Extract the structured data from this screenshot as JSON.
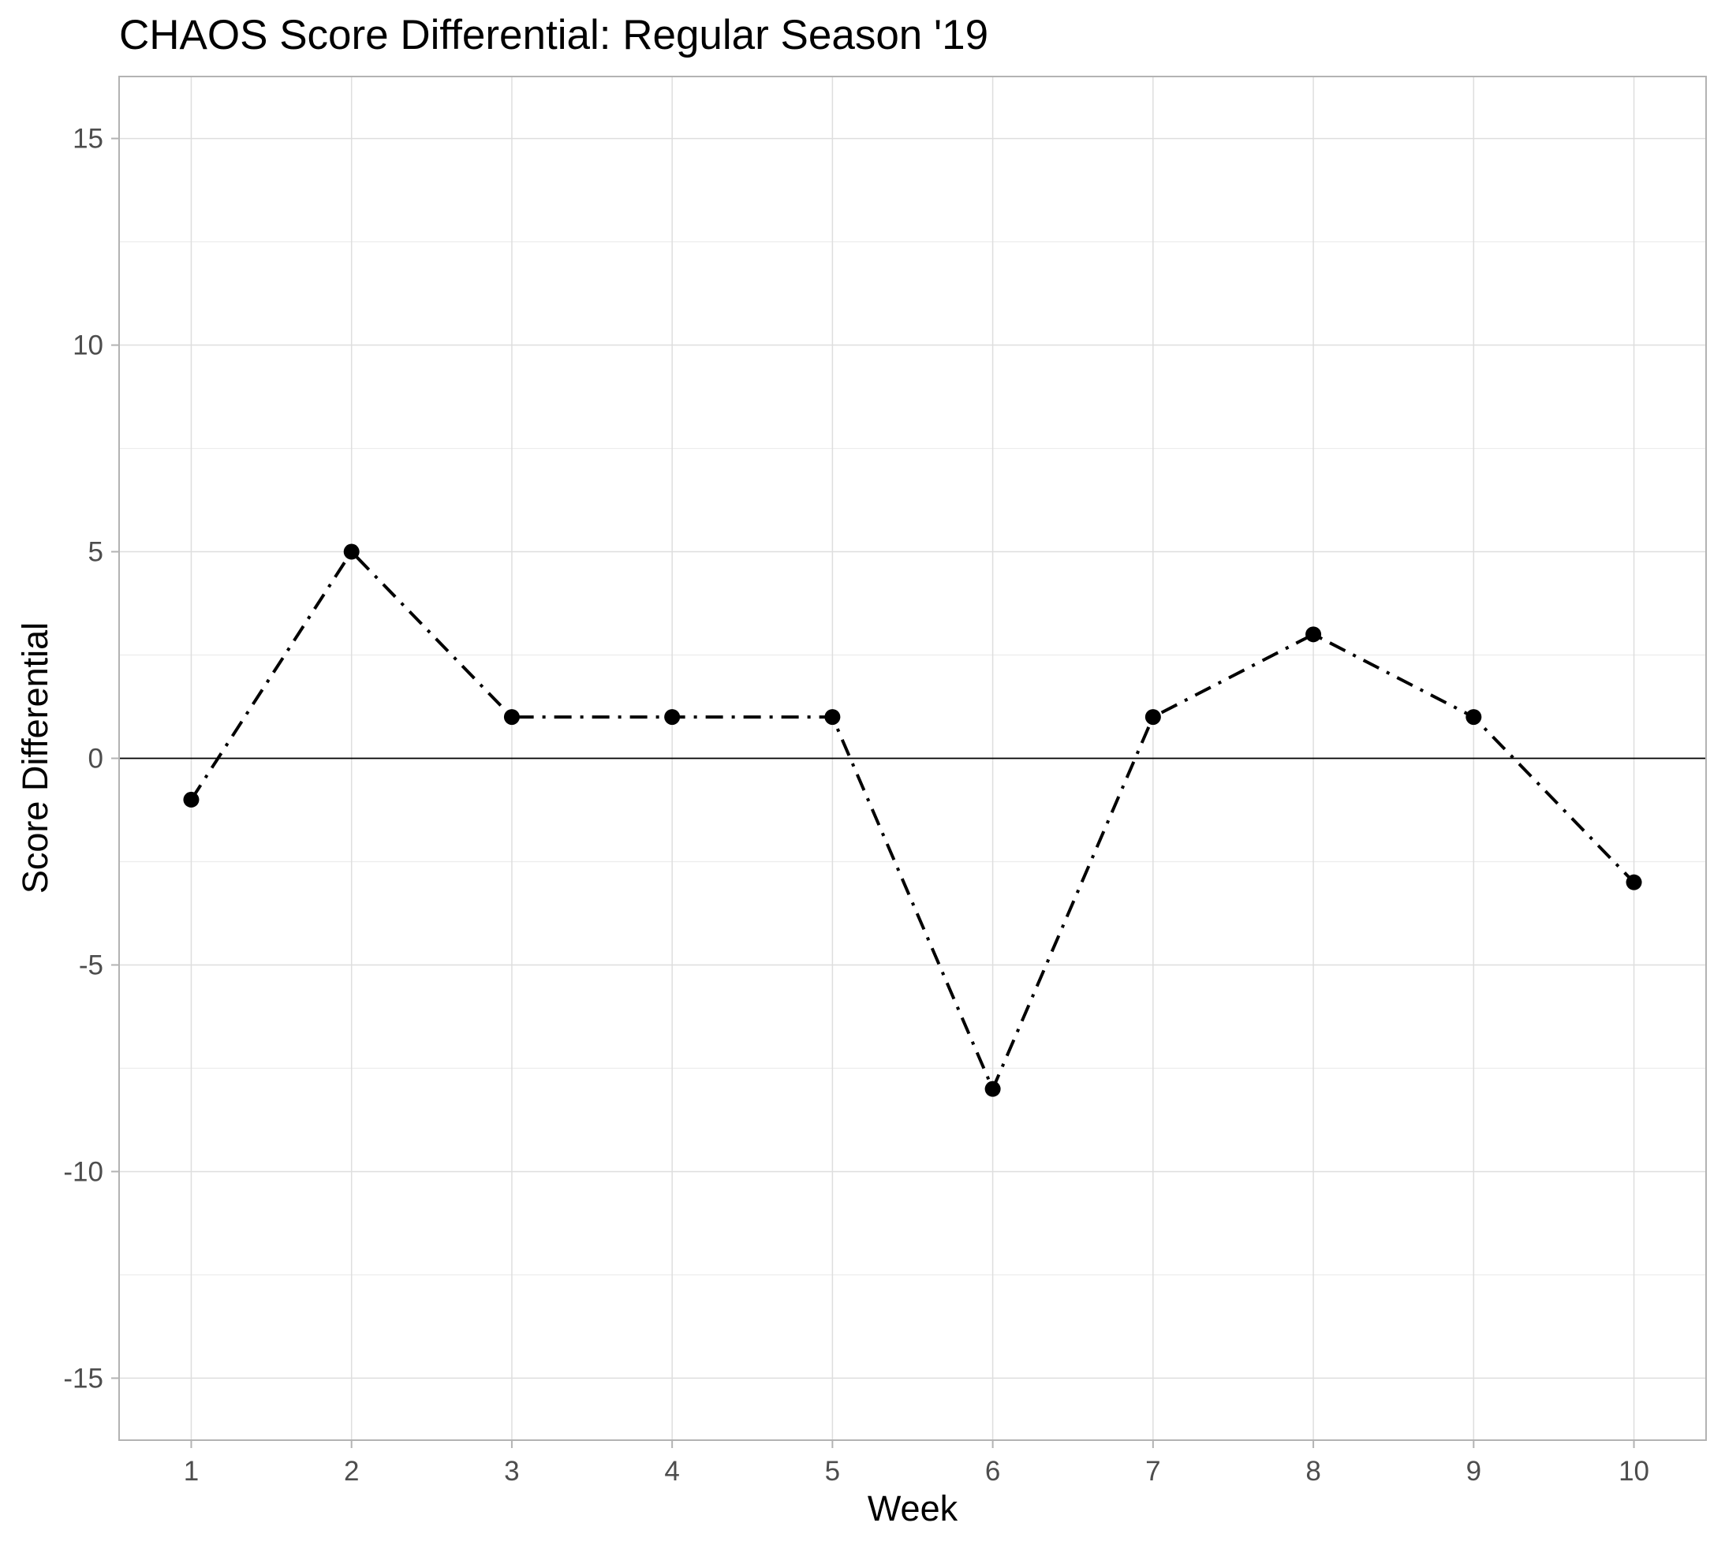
{
  "chart_data": {
    "type": "line",
    "title": "CHAOS Score Differential: Regular Season '19",
    "xlabel": "Week",
    "ylabel": "Score Differential",
    "x": [
      1,
      2,
      3,
      4,
      5,
      6,
      7,
      8,
      9,
      10
    ],
    "values": [
      -1,
      5,
      1,
      1,
      1,
      -8,
      1,
      3,
      1,
      -3
    ],
    "xlim": [
      0.55,
      10.45
    ],
    "ylim": [
      -16.5,
      16.5
    ],
    "xticks": [
      1,
      2,
      3,
      4,
      5,
      6,
      7,
      8,
      9,
      10
    ],
    "xtick_labels": [
      "1",
      "2",
      "3",
      "4",
      "5",
      "6",
      "7",
      "8",
      "9",
      "10"
    ],
    "yticks": [
      -15,
      -10,
      -5,
      0,
      5,
      10,
      15
    ],
    "ytick_labels": [
      "-15",
      "-10",
      "-5",
      "0",
      "5",
      "10",
      "15"
    ],
    "yminor": [
      -12.5,
      -7.5,
      -2.5,
      2.5,
      7.5,
      12.5
    ],
    "reference_line_y": 0,
    "grid": true,
    "line_style": "dash-dot",
    "series_color": "#000000"
  }
}
